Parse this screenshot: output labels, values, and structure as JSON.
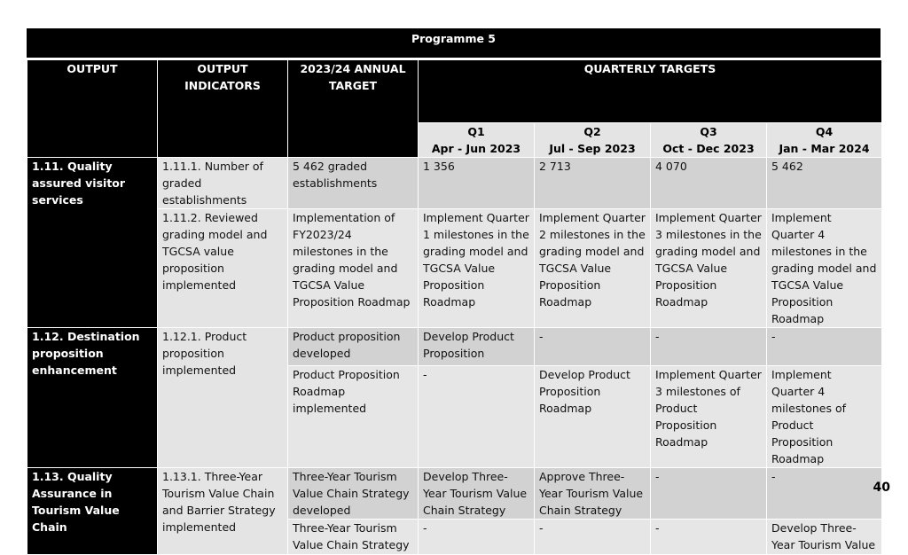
{
  "programme_title": "Programme 5",
  "headers": {
    "output": "OUTPUT",
    "output_indicators": "OUTPUT INDICATORS",
    "annual_target": "2023/24 ANNUAL TARGET",
    "quarterly_targets": "QUARTERLY TARGETS",
    "quarters": [
      {
        "label": "Q1",
        "period": "Apr - Jun 2023"
      },
      {
        "label": "Q2",
        "period": "Jul - Sep 2023"
      },
      {
        "label": "Q3",
        "period": "Oct - Dec 2023"
      },
      {
        "label": "Q4",
        "period": "Jan - Mar 2024"
      }
    ]
  },
  "outputs": [
    {
      "output": "1.11. Quality assured visitor services",
      "indicators": [
        {
          "indicator": "1.11.1. Number of graded establishments",
          "annual_target": "5 462 graded establishments",
          "q1": "1 356",
          "q2": "2 713",
          "q3": "4 070",
          "q4": "5 462"
        },
        {
          "indicator": "1.11.2. Reviewed grading model and TGCSA value proposition implemented",
          "annual_target": "Implementation of FY2023/24 milestones in the grading model and TGCSA Value Proposition Roadmap",
          "q1": "Implement Quarter 1 milestones in the grading model and TGCSA Value Proposition Roadmap",
          "q2": "Implement Quarter 2 milestones in the grading model and TGCSA Value Proposition Roadmap",
          "q3": "Implement Quarter 3 milestones in the grading model and TGCSA Value Proposition Roadmap",
          "q4": "Implement Quarter 4 milestones in the grading model and TGCSA Value Proposition Roadmap"
        }
      ]
    },
    {
      "output": "1.12. Destination proposition enhancement",
      "indicator": "1.12.1. Product proposition implemented",
      "targets": [
        {
          "annual_target": "Product proposition developed",
          "q1": "Develop Product Proposition",
          "q2": "-",
          "q3": "-",
          "q4": "-"
        },
        {
          "annual_target": "Product Proposition Roadmap implemented",
          "q1": "-",
          "q2": "Develop Product Proposition Roadmap",
          "q3": "Implement Quarter 3 milestones of Product Proposition Roadmap",
          "q4": "Implement Quarter 4 milestones of Product Proposition Roadmap"
        }
      ]
    },
    {
      "output": "1.13. Quality Assurance in Tourism Value Chain",
      "indicator": "1.13.1. Three-Year Tourism Value Chain and Barrier Strategy implemented",
      "targets": [
        {
          "annual_target": "Three-Year Tourism Value Chain Strategy developed",
          "q1": "Develop Three-Year Tourism Value Chain Strategy",
          "q2": "Approve Three-Year Tourism Value Chain Strategy",
          "q3": "-",
          "q4": "-"
        },
        {
          "annual_target": "Three-Year Tourism Value Chain Strategy",
          "q1": "-",
          "q2": "-",
          "q3": "-",
          "q4": "Develop Three-Year Tourism Value"
        }
      ]
    }
  ],
  "page_number": "40"
}
